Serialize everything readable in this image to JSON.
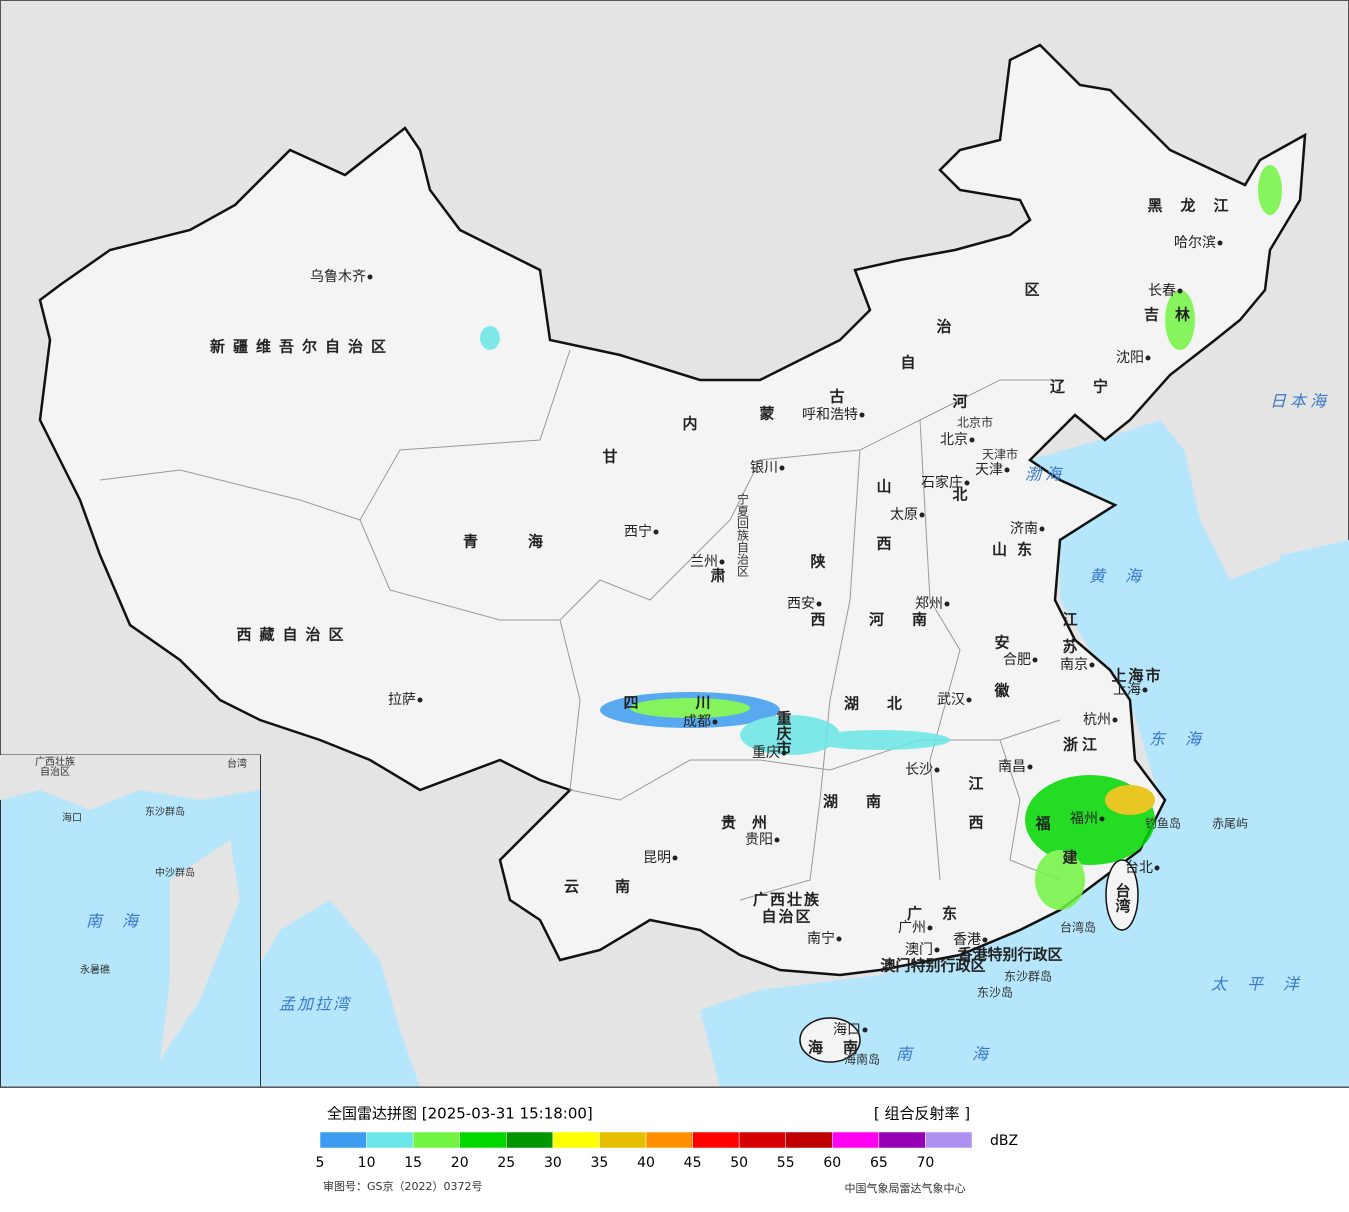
{
  "map": {
    "labels": [
      "新疆维吾尔自治区",
      "西藏自治区",
      "青海",
      "甘",
      "肃",
      "内",
      "蒙",
      "古",
      "自",
      "治",
      "区",
      "黑龙江",
      "吉林",
      "辽宁",
      "河",
      "北",
      "山",
      "西",
      "陕",
      "西",
      "宁夏回族自治区",
      "北京市",
      "天津市",
      "山东",
      "河南",
      "江",
      "苏",
      "安",
      "徽",
      "上海市",
      "浙江",
      "湖北",
      "湖南",
      "四",
      "川",
      "重庆市",
      "贵州",
      "江",
      "西",
      "福",
      "建",
      "云南",
      "广西壮族",
      "自治区",
      "广东",
      "台湾",
      "海南",
      "香港特别行政区",
      "澳门特别行政区"
    ],
    "cities": [
      "乌鲁木齐",
      "拉萨",
      "西宁",
      "兰州",
      "银川",
      "呼和浩特",
      "北京",
      "天津",
      "石家庄",
      "太原",
      "济南",
      "西安",
      "郑州",
      "合肥",
      "南京",
      "上海",
      "杭州",
      "武汉",
      "成都",
      "重庆",
      "长沙",
      "南昌",
      "福州",
      "贵阳",
      "昆明",
      "南宁",
      "广州",
      "澳门",
      "香港",
      "海口",
      "台北",
      "哈尔滨",
      "长春",
      "沈阳"
    ],
    "islands": [
      "钓鱼岛",
      "赤尾屿",
      "台湾岛",
      "东沙群岛",
      "东沙岛",
      "海南岛"
    ],
    "seas": [
      "日本海",
      "渤海",
      "黄海",
      "东海",
      "太平洋",
      "南海",
      "孟加拉湾"
    ],
    "inset_labels": [
      "南海",
      "广西壮族",
      "自治区",
      "海口",
      "台湾",
      "东沙群岛",
      "中沙群岛",
      "永暑礁"
    ]
  },
  "legend": {
    "title": "全国雷达拼图 [2025-03-31 15:18:00]",
    "product": "[ 组合反射率 ]",
    "unit": "dBZ",
    "ticks": [
      5,
      10,
      15,
      20,
      25,
      30,
      35,
      40,
      45,
      50,
      55,
      60,
      65,
      70
    ],
    "colors": [
      "#3d9cf0",
      "#6ae6e8",
      "#72f542",
      "#00d800",
      "#009600",
      "#ffff00",
      "#e6c000",
      "#ff9000",
      "#ff0000",
      "#d60000",
      "#c00000",
      "#ff00f0",
      "#9600b4",
      "#ae90f0"
    ],
    "approval": "审图号：GS京（2022）0372号",
    "source": "中国气象局雷达气象中心"
  }
}
